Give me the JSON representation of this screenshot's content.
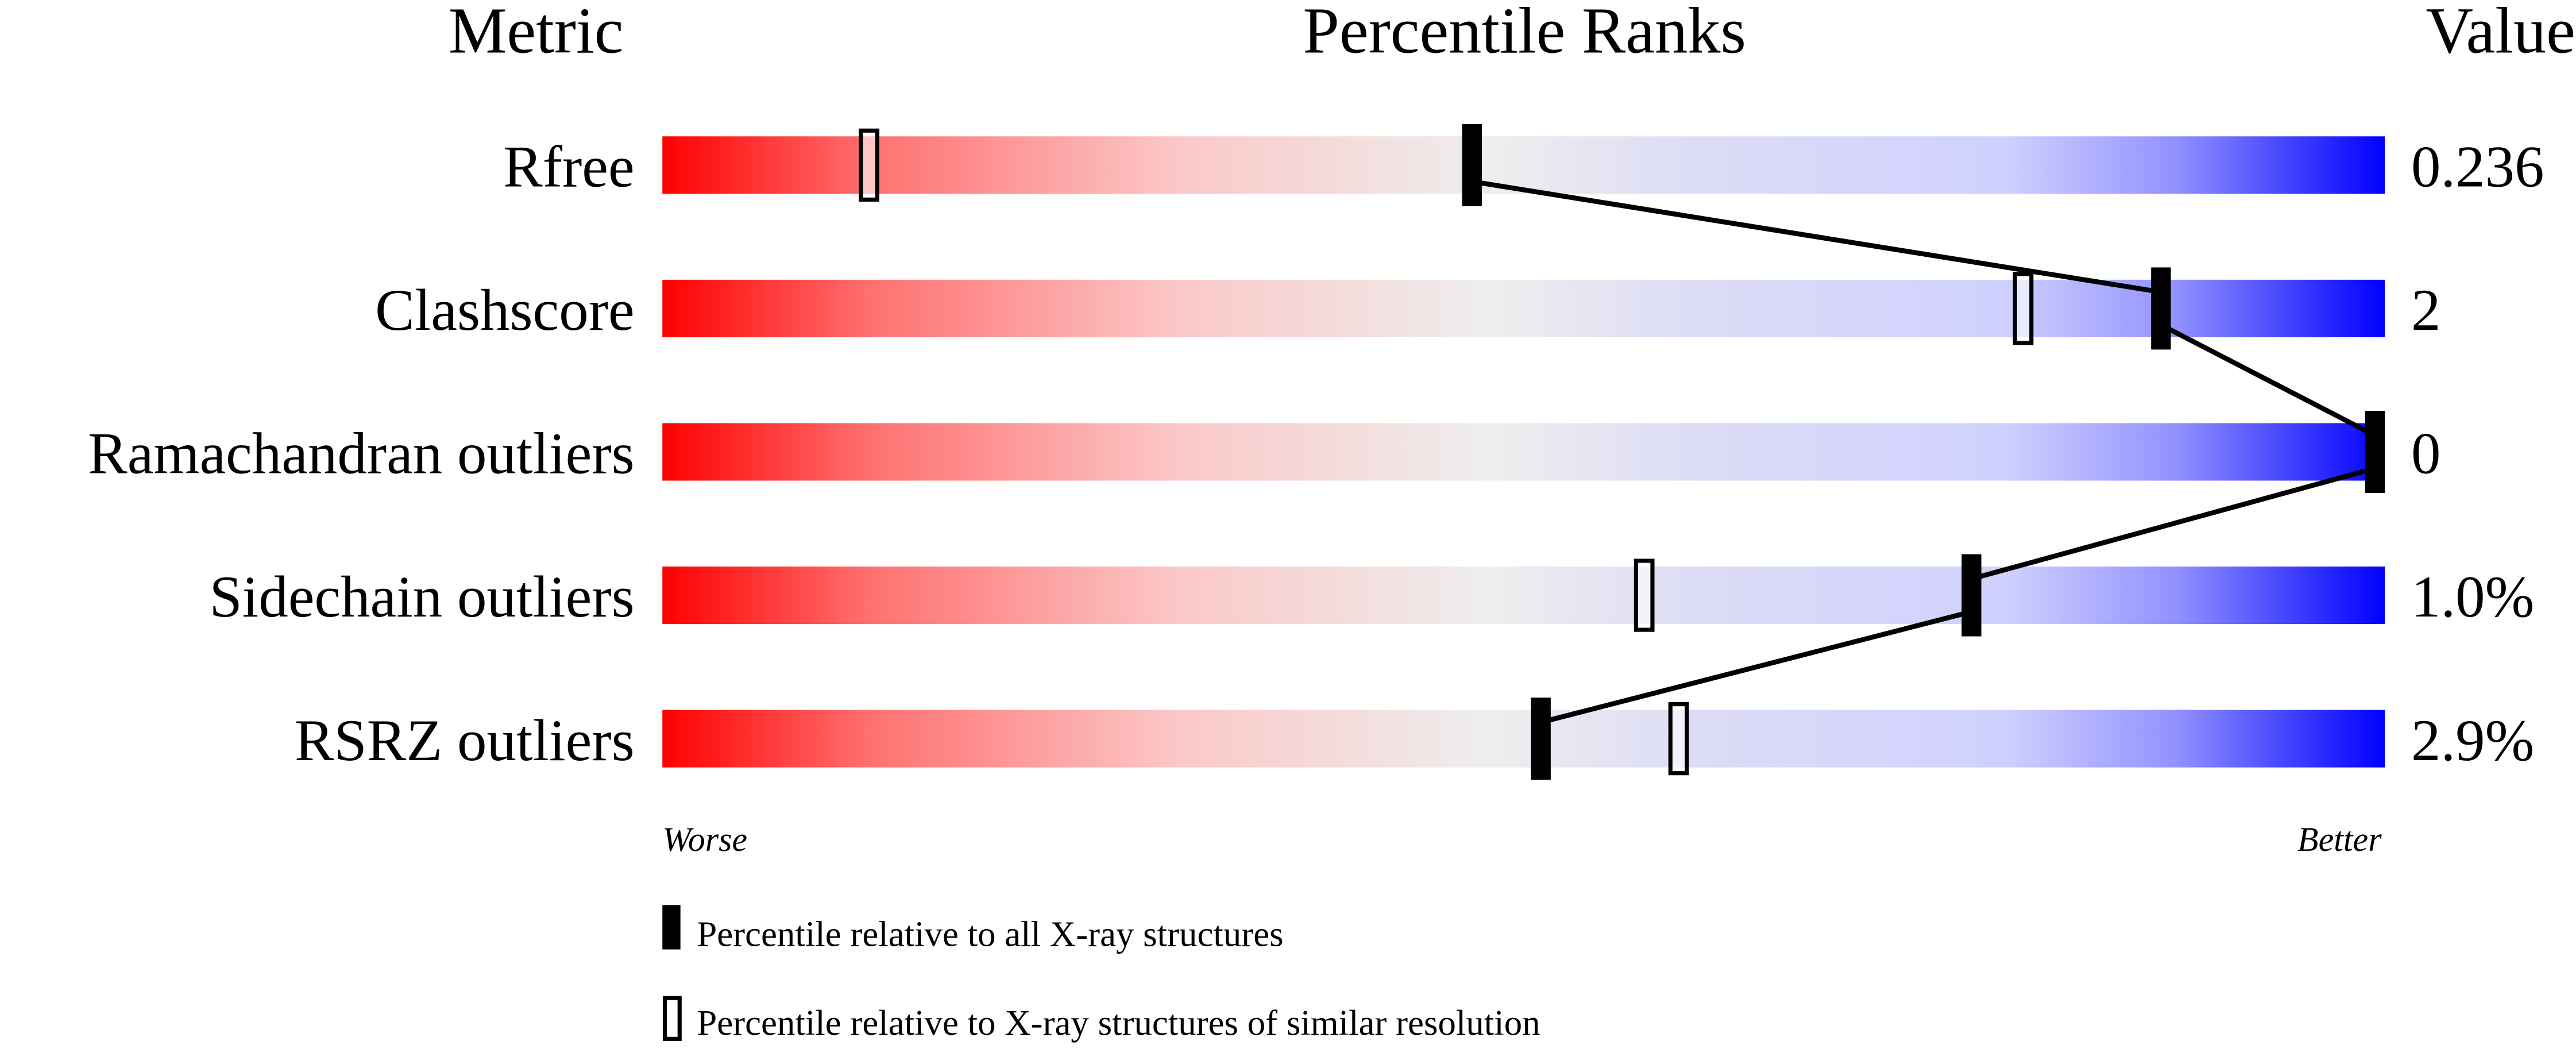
{
  "chart_data": {
    "type": "bar",
    "headers": {
      "metric": "Metric",
      "percentile": "Percentile Ranks",
      "value": "Value"
    },
    "xlim": [
      0,
      100
    ],
    "axis_labels": {
      "worse": "Worse",
      "better": "Better"
    },
    "metrics": [
      {
        "name": "Rfree",
        "value": "0.236",
        "percentile_all": 47,
        "percentile_similar": 12
      },
      {
        "name": "Clashscore",
        "value": "2",
        "percentile_all": 87,
        "percentile_similar": 79
      },
      {
        "name": "Ramachandran outliers",
        "value": "0",
        "percentile_all": 100,
        "percentile_similar": 100
      },
      {
        "name": "Sidechain outliers",
        "value": "1.0%",
        "percentile_all": 76,
        "percentile_similar": 57
      },
      {
        "name": "RSRZ outliers",
        "value": "2.9%",
        "percentile_all": 51,
        "percentile_similar": 59
      }
    ],
    "legend": {
      "placement": "bottom",
      "filled": "Percentile relative to all X-ray structures",
      "hollow": "Percentile relative to X-ray structures of similar resolution"
    },
    "colors": {
      "worse": "#ff0000",
      "middle": "#eeeeee",
      "better": "#0000ff"
    }
  }
}
